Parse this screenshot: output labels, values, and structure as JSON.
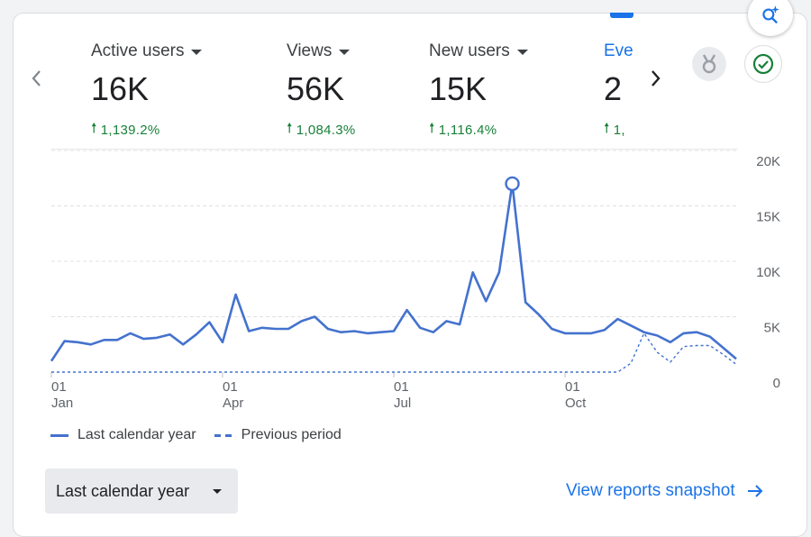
{
  "metrics": [
    {
      "label": "Active users",
      "value": "16K",
      "change": "1,139.2%"
    },
    {
      "label": "Views",
      "value": "56K",
      "change": "1,084.3%"
    },
    {
      "label": "New users",
      "value": "15K",
      "change": "1,116.4%"
    },
    {
      "label": "Eve",
      "value": "2",
      "change": "1,"
    }
  ],
  "legend": {
    "current": "Last calendar year",
    "previous": "Previous period"
  },
  "controls": {
    "range_label": "Last calendar year",
    "snapshot_link": "View reports snapshot"
  },
  "icons": [
    "insights-search-icon",
    "chevron-left-icon",
    "chevron-right-icon",
    "medal-icon",
    "check-circle-icon",
    "arrow-right-icon"
  ],
  "colors": {
    "series": "#4472ce",
    "positive": "#188038",
    "link": "#1a73e8"
  },
  "chart_data": {
    "type": "line",
    "x_tick_labels": [
      {
        "day": "01",
        "month": "Jan",
        "week": 0
      },
      {
        "day": "01",
        "month": "Apr",
        "week": 13
      },
      {
        "day": "01",
        "month": "Jul",
        "week": 26
      },
      {
        "day": "01",
        "month": "Oct",
        "week": 39
      }
    ],
    "y_ticks": [
      "0",
      "5K",
      "10K",
      "15K",
      "20K"
    ],
    "ylim": [
      0,
      20000
    ],
    "xlim": [
      0,
      52
    ],
    "y_axis_side": "right",
    "grid": "horizontal dashed",
    "legend_position": "bottom-left",
    "series": [
      {
        "name": "Last calendar year",
        "style": "solid",
        "x": [
          0,
          1,
          2,
          3,
          4,
          5,
          6,
          7,
          8,
          9,
          10,
          11,
          12,
          13,
          14,
          15,
          16,
          17,
          18,
          19,
          20,
          21,
          22,
          23,
          24,
          25,
          26,
          27,
          28,
          29,
          30,
          31,
          32,
          33,
          34,
          35,
          36,
          37,
          38,
          39,
          40,
          41,
          42,
          43,
          44,
          45,
          46,
          47,
          48,
          49,
          50,
          51,
          52
        ],
        "values": [
          1000,
          2800,
          2700,
          2500,
          2900,
          2900,
          3500,
          3000,
          3100,
          3400,
          2500,
          3400,
          4500,
          2700,
          7000,
          3700,
          4000,
          3900,
          3900,
          4600,
          5000,
          3900,
          3600,
          3700,
          3500,
          3600,
          3700,
          5600,
          4000,
          3600,
          4600,
          4300,
          9000,
          6400,
          9000,
          17000,
          6300,
          5200,
          3900,
          3500,
          3500,
          3500,
          3800,
          4800,
          4200,
          3600,
          3300,
          2700,
          3500,
          3600,
          3200,
          2200,
          1200
        ]
      },
      {
        "name": "Previous period",
        "style": "dashed",
        "x": [
          0,
          4,
          8,
          12,
          16,
          20,
          24,
          28,
          32,
          36,
          40,
          42,
          43,
          44,
          45,
          46,
          47,
          48,
          49,
          50,
          51,
          52
        ],
        "values": [
          0,
          0,
          0,
          0,
          0,
          0,
          0,
          0,
          0,
          0,
          0,
          0,
          0,
          800,
          3500,
          1800,
          900,
          2300,
          2400,
          2400,
          1600,
          700
        ]
      }
    ],
    "highlight": {
      "series": 0,
      "x": 35,
      "value": 17000
    }
  }
}
